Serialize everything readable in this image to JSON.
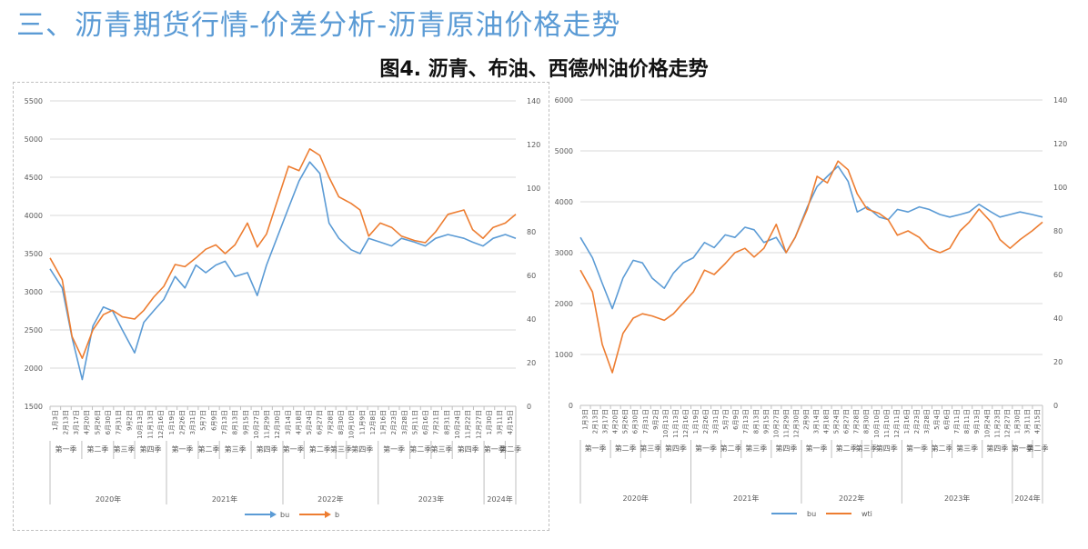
{
  "header": {
    "slide_title": "三、沥青期货行情-价差分析-沥青原油价格走势",
    "figure_title": "图4. 沥青、布油、西德州油价格走势"
  },
  "colors": {
    "bu": "#5b9bd5",
    "oil": "#ed7d31",
    "grid": "#d9d9d9",
    "axis_text": "#595959"
  },
  "chart_data": [
    {
      "type": "line",
      "left_ylim": [
        1500,
        5500
      ],
      "left_ticks": [
        1500,
        2000,
        2500,
        3000,
        3500,
        4000,
        4500,
        5000,
        5500
      ],
      "right_ylim": [
        0,
        140
      ],
      "right_ticks": [
        0,
        20,
        40,
        60,
        80,
        100,
        120,
        140
      ],
      "grid": true,
      "legend_position": "bottom",
      "x_date_labels": [
        "1月3日",
        "2月13日",
        "3月17日",
        "4月20日",
        "5月26日",
        "6月30日",
        "7月31日",
        "9月2日",
        "10月13日",
        "11月13日",
        "12月16日",
        "1月19日",
        "2月26日",
        "3月31日",
        "5月7日",
        "6月9日",
        "7月13日",
        "8月13日",
        "9月15日",
        "10月27日",
        "11月29日",
        "12月30日",
        "3月14日",
        "4月18日",
        "5月24日",
        "6月27日",
        "7月28日",
        "8月30日",
        "10月10日",
        "11月9日",
        "12月8日",
        "1月16日",
        "2月23日",
        "3月28日",
        "5月11日",
        "6月16日",
        "7月21日",
        "8月31日",
        "10月24日",
        "11月22日",
        "12月27日",
        "1月30日",
        "3月11日",
        "4月15日"
      ],
      "x_quarter_labels": [
        {
          "label": "第一季",
          "from": 0,
          "to": 2
        },
        {
          "label": "第二季",
          "from": 3,
          "to": 5
        },
        {
          "label": "第三季",
          "from": 6,
          "to": 7
        },
        {
          "label": "第四季",
          "from": 8,
          "to": 10
        },
        {
          "label": "第一季",
          "from": 11,
          "to": 13
        },
        {
          "label": "第二季",
          "from": 14,
          "to": 15
        },
        {
          "label": "第三季",
          "from": 16,
          "to": 18
        },
        {
          "label": "第四季",
          "from": 19,
          "to": 21
        },
        {
          "label": "第一季",
          "from": 22,
          "to": 23
        },
        {
          "label": "第二季",
          "from": 24,
          "to": 26
        },
        {
          "label": "第三季",
          "from": 27,
          "to": 27
        },
        {
          "label": "第四季",
          "from": 28,
          "to": 30
        },
        {
          "label": "第一季",
          "from": 31,
          "to": 33
        },
        {
          "label": "第二季",
          "from": 34,
          "to": 35
        },
        {
          "label": "第三季",
          "from": 36,
          "to": 37
        },
        {
          "label": "第四季",
          "from": 38,
          "to": 40
        },
        {
          "label": "第一季",
          "from": 41,
          "to": 42
        },
        {
          "label": "第二季",
          "from": 43,
          "to": 43
        }
      ],
      "x_year_labels": [
        {
          "label": "2020年",
          "from": 0,
          "to": 10
        },
        {
          "label": "2021年",
          "from": 11,
          "to": 21
        },
        {
          "label": "2022年",
          "from": 22,
          "to": 30
        },
        {
          "label": "2023年",
          "from": 31,
          "to": 40
        },
        {
          "label": "2024年",
          "from": 41,
          "to": 43
        }
      ],
      "series": [
        {
          "name": "bu",
          "axis": "left",
          "color": "#5b9bd5",
          "x": [
            "2020-01-03",
            "2020-02-13",
            "2020-03-17",
            "2020-04-20",
            "2020-05-26",
            "2020-06-30",
            "2020-07-31",
            "2020-09-02",
            "2020-10-13",
            "2020-11-13",
            "2020-12-16",
            "2021-01-19",
            "2021-02-26",
            "2021-03-31",
            "2021-05-07",
            "2021-06-09",
            "2021-07-13",
            "2021-08-13",
            "2021-09-15",
            "2021-10-27",
            "2021-11-29",
            "2021-12-30",
            "2022-03-14",
            "2022-04-18",
            "2022-05-24",
            "2022-06-27",
            "2022-07-28",
            "2022-08-30",
            "2022-10-10",
            "2022-11-09",
            "2022-12-08",
            "2023-01-16",
            "2023-02-23",
            "2023-03-28",
            "2023-05-11",
            "2023-06-16",
            "2023-07-21",
            "2023-08-31",
            "2023-10-24",
            "2023-11-22",
            "2023-12-27",
            "2024-01-30",
            "2024-03-11",
            "2024-04-15"
          ],
          "values": [
            3300,
            3050,
            2400,
            1850,
            2550,
            2800,
            2750,
            2500,
            2200,
            2600,
            2750,
            2900,
            3200,
            3050,
            3350,
            3250,
            3350,
            3400,
            3200,
            3250,
            2950,
            3350,
            4100,
            4450,
            4700,
            4550,
            3900,
            3700,
            3550,
            3500,
            3700,
            3650,
            3600,
            3700,
            3650,
            3600,
            3700,
            3750,
            3700,
            3650,
            3600,
            3700,
            3750,
            3700
          ]
        },
        {
          "name": "b",
          "axis": "right",
          "color": "#ed7d31",
          "x": [
            "2020-01-03",
            "2020-02-13",
            "2020-03-17",
            "2020-04-20",
            "2020-05-26",
            "2020-06-30",
            "2020-07-31",
            "2020-09-02",
            "2020-10-13",
            "2020-11-13",
            "2020-12-16",
            "2021-01-19",
            "2021-02-26",
            "2021-03-31",
            "2021-05-07",
            "2021-06-09",
            "2021-07-13",
            "2021-08-13",
            "2021-09-15",
            "2021-10-27",
            "2021-11-29",
            "2021-12-30",
            "2022-03-14",
            "2022-04-18",
            "2022-05-24",
            "2022-06-27",
            "2022-07-28",
            "2022-08-30",
            "2022-10-10",
            "2022-11-09",
            "2022-12-08",
            "2023-01-16",
            "2023-02-23",
            "2023-03-28",
            "2023-05-11",
            "2023-06-16",
            "2023-07-21",
            "2023-08-31",
            "2023-10-24",
            "2023-11-22",
            "2023-12-27",
            "2024-01-30",
            "2024-03-11",
            "2024-04-15"
          ],
          "values": [
            68,
            58,
            32,
            22,
            35,
            42,
            44,
            41,
            40,
            44,
            50,
            55,
            65,
            64,
            68,
            72,
            74,
            70,
            74,
            84,
            73,
            79,
            110,
            108,
            118,
            115,
            105,
            96,
            93,
            90,
            78,
            84,
            82,
            78,
            76,
            75,
            80,
            88,
            90,
            81,
            77,
            82,
            84,
            88
          ]
        }
      ]
    },
    {
      "type": "line",
      "left_ylim": [
        0,
        6000
      ],
      "left_ticks": [
        0,
        1000,
        2000,
        3000,
        4000,
        5000,
        6000
      ],
      "right_ylim": [
        0,
        140
      ],
      "right_ticks": [
        0,
        20,
        40,
        60,
        80,
        100,
        120,
        140
      ],
      "grid": true,
      "legend_position": "bottom",
      "x_date_labels": [
        "1月3日",
        "2月13日",
        "3月17日",
        "4月20日",
        "5月26日",
        "6月30日",
        "7月31日",
        "9月2日",
        "10月13日",
        "11月13日",
        "12月16日",
        "1月19日",
        "2月26日",
        "3月31日",
        "5月7日",
        "6月9日",
        "7月13日",
        "8月13日",
        "9月15日",
        "10月27日",
        "11月29日",
        "12月30日",
        "2月9日",
        "3月14日",
        "4月18日",
        "5月24日",
        "6月27日",
        "7月28日",
        "8月30日",
        "10月10日",
        "11月10日",
        "12月11日",
        "1月16日",
        "2月23日",
        "3月28日",
        "5月4日",
        "6月6日",
        "7月11日",
        "8月11日",
        "9月13日",
        "10月24日",
        "11月23日",
        "12月27日",
        "1月30日",
        "3月11日",
        "4月15日"
      ],
      "x_quarter_labels": [
        {
          "label": "第一季",
          "from": 0,
          "to": 2
        },
        {
          "label": "第二季",
          "from": 3,
          "to": 5
        },
        {
          "label": "第三季",
          "from": 6,
          "to": 7
        },
        {
          "label": "第四季",
          "from": 8,
          "to": 10
        },
        {
          "label": "第一季",
          "from": 11,
          "to": 13
        },
        {
          "label": "第二季",
          "from": 14,
          "to": 15
        },
        {
          "label": "第三季",
          "from": 16,
          "to": 18
        },
        {
          "label": "第四季",
          "from": 19,
          "to": 21
        },
        {
          "label": "第一季",
          "from": 22,
          "to": 24
        },
        {
          "label": "第二季",
          "from": 25,
          "to": 27
        },
        {
          "label": "第三季",
          "from": 28,
          "to": 28
        },
        {
          "label": "第四季",
          "from": 29,
          "to": 31
        },
        {
          "label": "第一季",
          "from": 32,
          "to": 34
        },
        {
          "label": "第二季",
          "from": 35,
          "to": 36
        },
        {
          "label": "第三季",
          "from": 37,
          "to": 39
        },
        {
          "label": "第四季",
          "from": 40,
          "to": 42
        },
        {
          "label": "第一季",
          "from": 43,
          "to": 44
        },
        {
          "label": "第二季",
          "from": 45,
          "to": 45
        }
      ],
      "x_year_labels": [
        {
          "label": "2020年",
          "from": 0,
          "to": 10
        },
        {
          "label": "2021年",
          "from": 11,
          "to": 21
        },
        {
          "label": "2022年",
          "from": 22,
          "to": 31
        },
        {
          "label": "2023年",
          "from": 32,
          "to": 42
        },
        {
          "label": "2024年",
          "from": 43,
          "to": 45
        }
      ],
      "series": [
        {
          "name": "bu",
          "axis": "left",
          "color": "#5b9bd5",
          "x": [
            "2020-01-03",
            "2020-02-13",
            "2020-03-17",
            "2020-04-20",
            "2020-05-26",
            "2020-06-30",
            "2020-07-31",
            "2020-09-02",
            "2020-10-13",
            "2020-11-13",
            "2020-12-16",
            "2021-01-19",
            "2021-02-26",
            "2021-03-31",
            "2021-05-07",
            "2021-06-09",
            "2021-07-13",
            "2021-08-13",
            "2021-09-15",
            "2021-10-27",
            "2021-11-29",
            "2021-12-30",
            "2022-02-09",
            "2022-03-14",
            "2022-04-18",
            "2022-05-24",
            "2022-06-27",
            "2022-07-28",
            "2022-08-30",
            "2022-10-10",
            "2022-11-10",
            "2022-12-11",
            "2023-01-16",
            "2023-02-23",
            "2023-03-28",
            "2023-05-04",
            "2023-06-06",
            "2023-07-11",
            "2023-08-11",
            "2023-09-13",
            "2023-10-24",
            "2023-11-23",
            "2023-12-27",
            "2024-01-30",
            "2024-03-11",
            "2024-04-15"
          ],
          "values": [
            3300,
            2900,
            2400,
            1900,
            2500,
            2850,
            2800,
            2500,
            2300,
            2600,
            2800,
            2900,
            3200,
            3100,
            3350,
            3300,
            3500,
            3450,
            3200,
            3300,
            3000,
            3300,
            3900,
            4300,
            4500,
            4700,
            4400,
            3800,
            3900,
            3700,
            3650,
            3850,
            3800,
            3900,
            3850,
            3750,
            3700,
            3750,
            3800,
            3950,
            3800,
            3700,
            3750,
            3800,
            3750,
            3700
          ]
        },
        {
          "name": "wti",
          "axis": "right",
          "color": "#ed7d31",
          "x": [
            "2020-01-03",
            "2020-02-13",
            "2020-03-17",
            "2020-04-20",
            "2020-05-26",
            "2020-06-30",
            "2020-07-31",
            "2020-09-02",
            "2020-10-13",
            "2020-11-13",
            "2020-12-16",
            "2021-01-19",
            "2021-02-26",
            "2021-03-31",
            "2021-05-07",
            "2021-06-09",
            "2021-07-13",
            "2021-08-13",
            "2021-09-15",
            "2021-10-27",
            "2021-11-29",
            "2021-12-30",
            "2022-02-09",
            "2022-03-14",
            "2022-04-18",
            "2022-05-24",
            "2022-06-27",
            "2022-07-28",
            "2022-08-30",
            "2022-10-10",
            "2022-11-10",
            "2022-12-11",
            "2023-01-16",
            "2023-02-23",
            "2023-03-28",
            "2023-05-04",
            "2023-06-06",
            "2023-07-11",
            "2023-08-11",
            "2023-09-13",
            "2023-10-24",
            "2023-11-23",
            "2023-12-27",
            "2024-01-30",
            "2024-03-11",
            "2024-04-15"
          ],
          "values": [
            62,
            52,
            28,
            15,
            33,
            40,
            42,
            41,
            39,
            42,
            47,
            52,
            62,
            60,
            65,
            70,
            72,
            68,
            72,
            83,
            70,
            77,
            90,
            105,
            102,
            112,
            108,
            97,
            90,
            88,
            85,
            78,
            80,
            77,
            72,
            70,
            72,
            80,
            84,
            90,
            84,
            76,
            72,
            76,
            80,
            84
          ]
        }
      ]
    }
  ]
}
